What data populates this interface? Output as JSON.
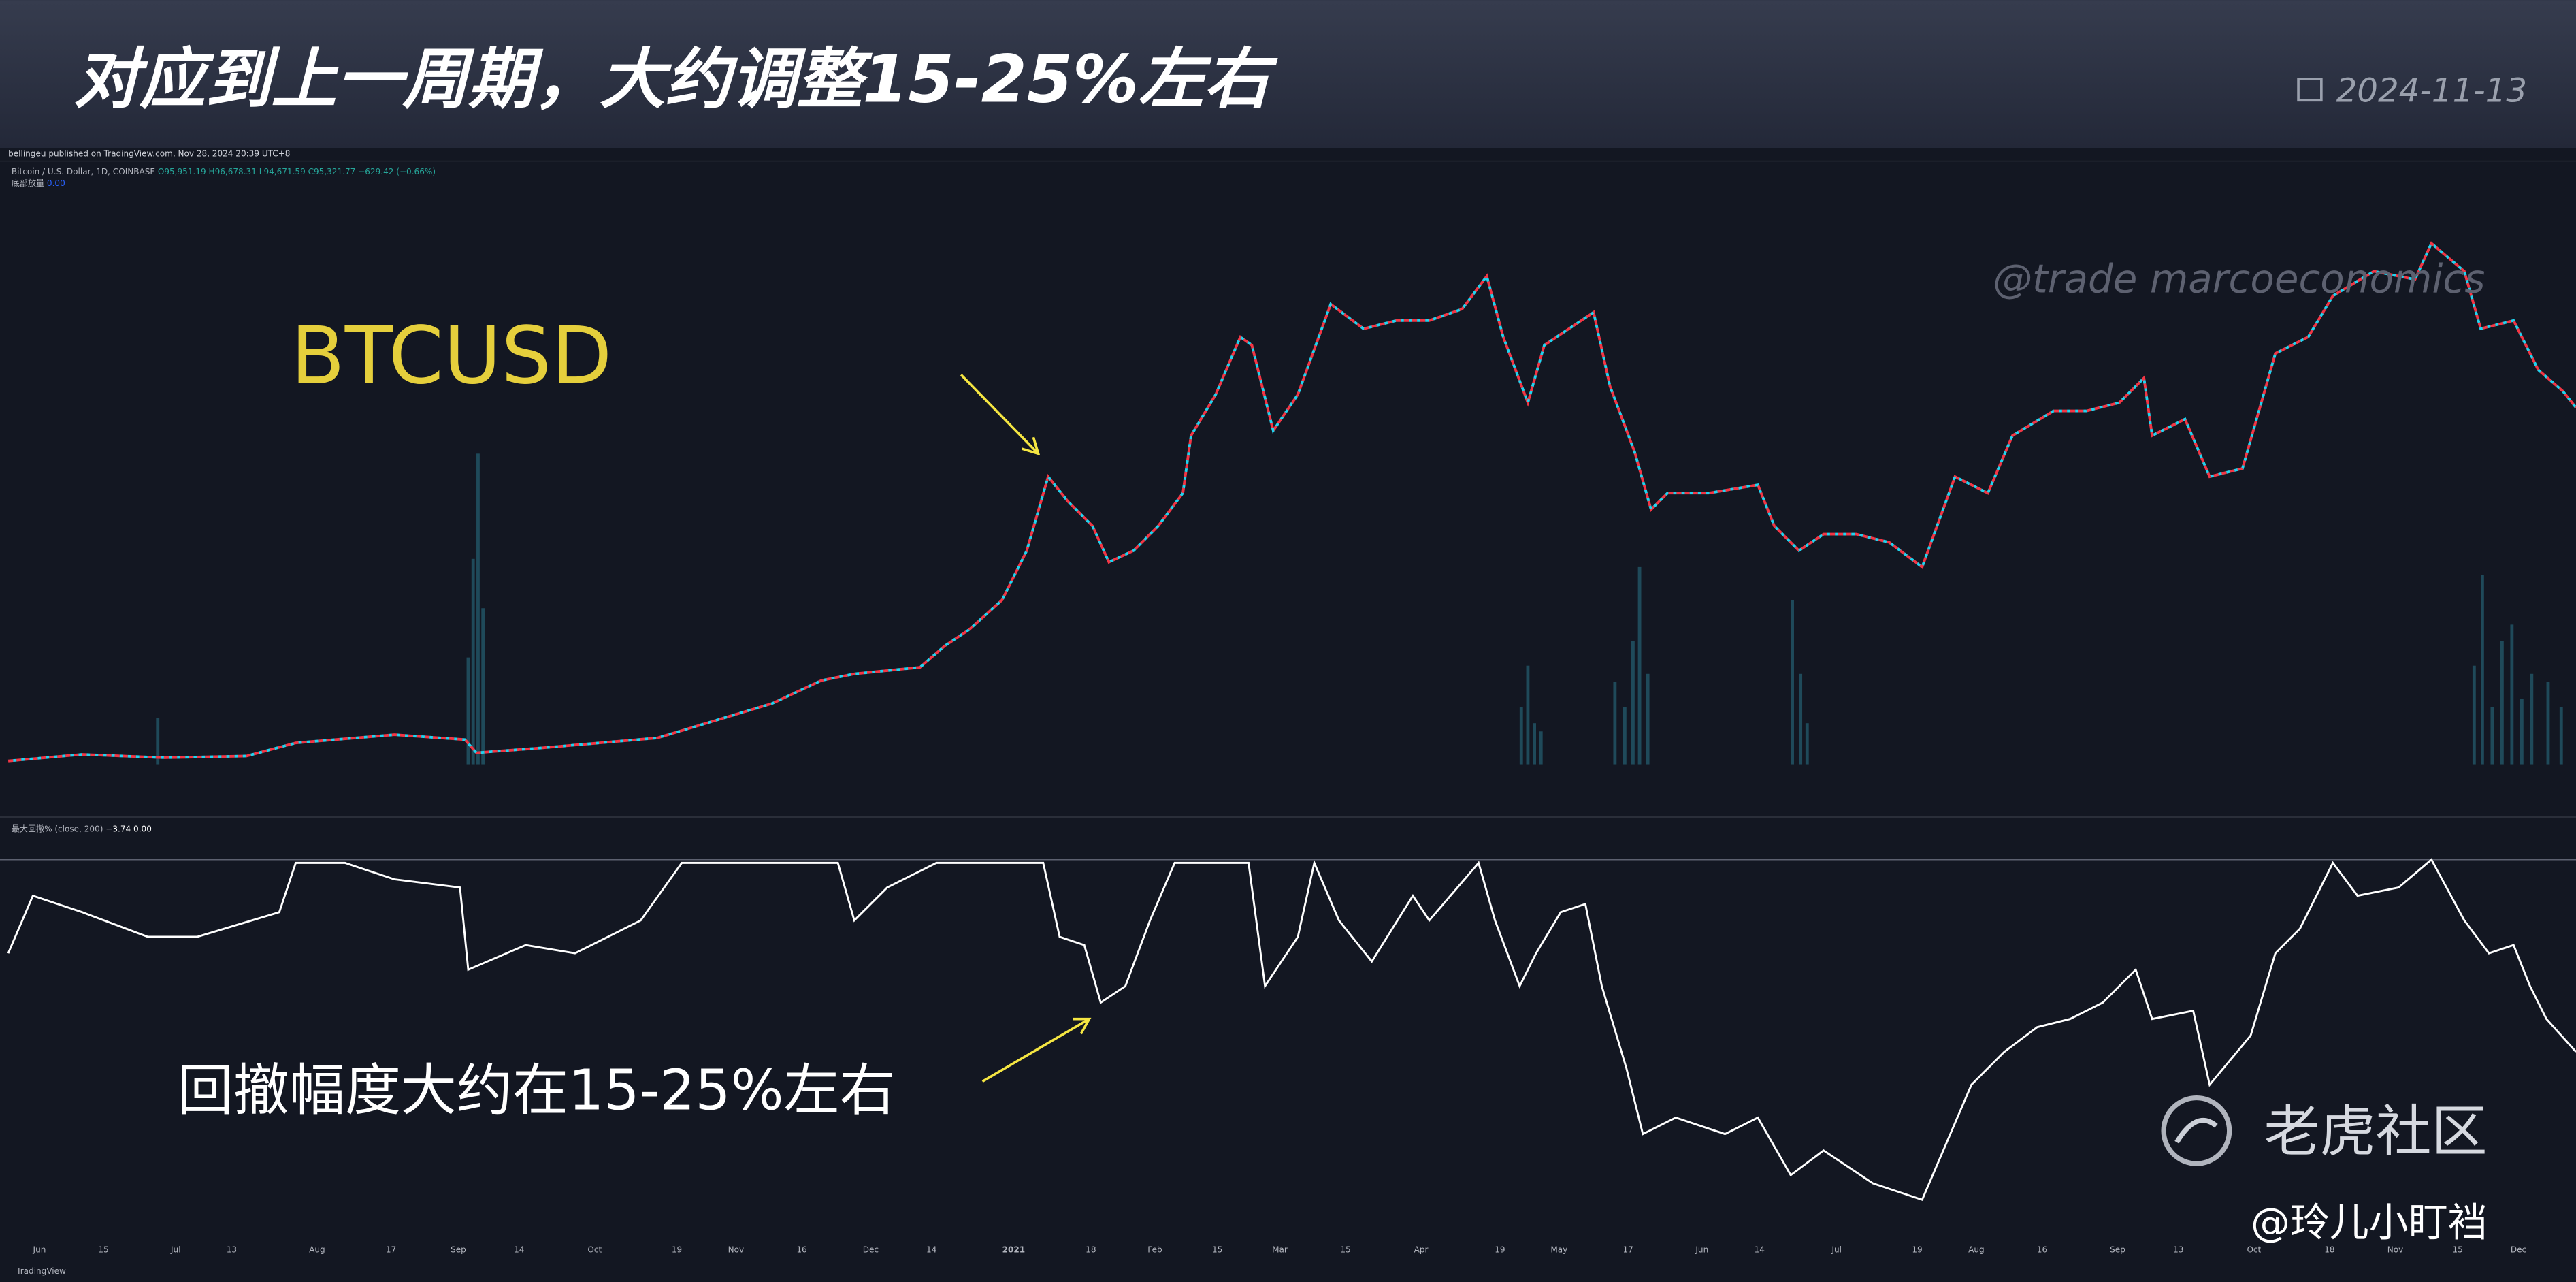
{
  "header": {
    "title": "对应到上一周期，大约调整15-25%左右",
    "date": "2024-11-13"
  },
  "chart_info": {
    "publisher": "bellingeu published on TradingView.com, Nov 28, 2024 20:39 UTC+8",
    "symbol": "Bitcoin / U.S. Dollar, 1D, COINBASE",
    "open": "O95,951.19",
    "high": "H96,678.31",
    "low": "L94,671.59",
    "close": "C95,321.77",
    "change": "−629.42 (−0.66%)",
    "volume_label": "底部放量",
    "volume_value": "0.00"
  },
  "watermark": "@trade marcoeconomics",
  "price_label": "BTCUSD",
  "indicator": {
    "name": "最大回撤% (close, 200)",
    "value1": "−3.74",
    "value2": "0.00"
  },
  "annotation": "回撤幅度大约在15-25%左右",
  "x_axis": [
    "Jun",
    "15",
    "Jul",
    "13",
    "Aug",
    "17",
    "Sep",
    "14",
    "Oct",
    "19",
    "Nov",
    "16",
    "Dec",
    "14",
    "2021",
    "18",
    "Feb",
    "15",
    "Mar",
    "15",
    "Apr",
    "19",
    "May",
    "17",
    "Jun",
    "14",
    "Jul",
    "19",
    "Aug",
    "16",
    "Sep",
    "13",
    "Oct",
    "18",
    "Nov",
    "15",
    "Dec"
  ],
  "footer": {
    "community": "老虎社区",
    "author": "@玲儿小盯裆",
    "brand": "TradingView"
  }
}
